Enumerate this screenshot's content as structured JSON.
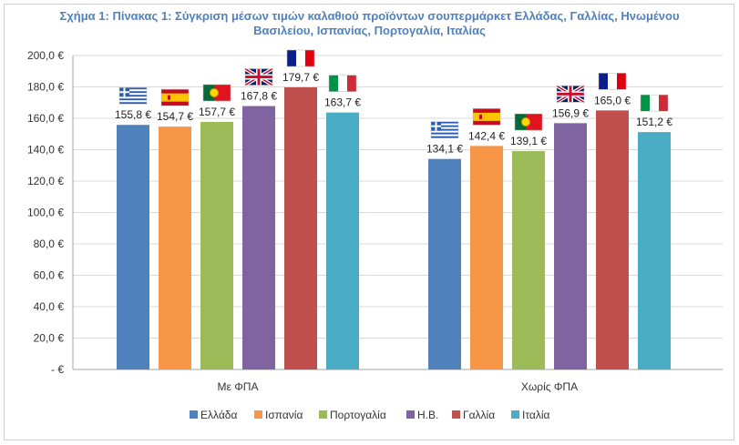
{
  "title_line1": "Σχήμα 1: Πίνακας 1: Σύγκριση μέσων τιμών καλαθιού προϊόντων σουπερμάρκετ Ελλάδας, Γαλλίας, Ηνωμένου",
  "title_line2": "Βασιλείου, Ισπανίας, Πορτογαλία, Ιταλίας",
  "chart_data": {
    "type": "bar",
    "categories": [
      "Με ΦΠΑ",
      "Χωρίς ΦΠΑ"
    ],
    "ylim": [
      0,
      200
    ],
    "y_ticks": [
      {
        "value": 200,
        "label": "200,0 €"
      },
      {
        "value": 180,
        "label": "180,0 €"
      },
      {
        "value": 160,
        "label": "160,0 €"
      },
      {
        "value": 140,
        "label": "140,0 €"
      },
      {
        "value": 120,
        "label": "120,0 €"
      },
      {
        "value": 100,
        "label": "100,0 €"
      },
      {
        "value": 80,
        "label": "80,0 €"
      },
      {
        "value": 60,
        "label": "60,0 €"
      },
      {
        "value": 40,
        "label": "40,0 €"
      },
      {
        "value": 20,
        "label": "20,0 €"
      },
      {
        "value": 0,
        "label": "-  €"
      }
    ],
    "grid": true,
    "legend_position": "bottom",
    "series": [
      {
        "name": "Ελλάδα",
        "color": "#4f81bd",
        "flag": "greece-flag",
        "values": [
          155.8,
          134.1
        ],
        "labels": [
          "155,8 €",
          "134,1 €"
        ]
      },
      {
        "name": "Ισπανία",
        "color": "#f79646",
        "flag": "spain-flag",
        "values": [
          154.7,
          142.4
        ],
        "labels": [
          "154,7 €",
          "142,4 €"
        ]
      },
      {
        "name": "Πορτογαλία",
        "color": "#9bbb59",
        "flag": "portugal-flag",
        "values": [
          157.7,
          139.1
        ],
        "labels": [
          "157,7 €",
          "139,1 €"
        ]
      },
      {
        "name": "Η.Β.",
        "color": "#8064a2",
        "flag": "uk-flag",
        "values": [
          167.8,
          156.9
        ],
        "labels": [
          "167,8 €",
          "156,9 €"
        ]
      },
      {
        "name": "Γαλλία",
        "color": "#c0504d",
        "flag": "france-flag",
        "values": [
          179.7,
          165.0
        ],
        "labels": [
          "179,7 €",
          "165,0 €"
        ]
      },
      {
        "name": "Ιταλία",
        "color": "#4bacc6",
        "flag": "italy-flag",
        "values": [
          163.7,
          151.2
        ],
        "labels": [
          "163,7 €",
          "151,2 €"
        ]
      }
    ]
  }
}
